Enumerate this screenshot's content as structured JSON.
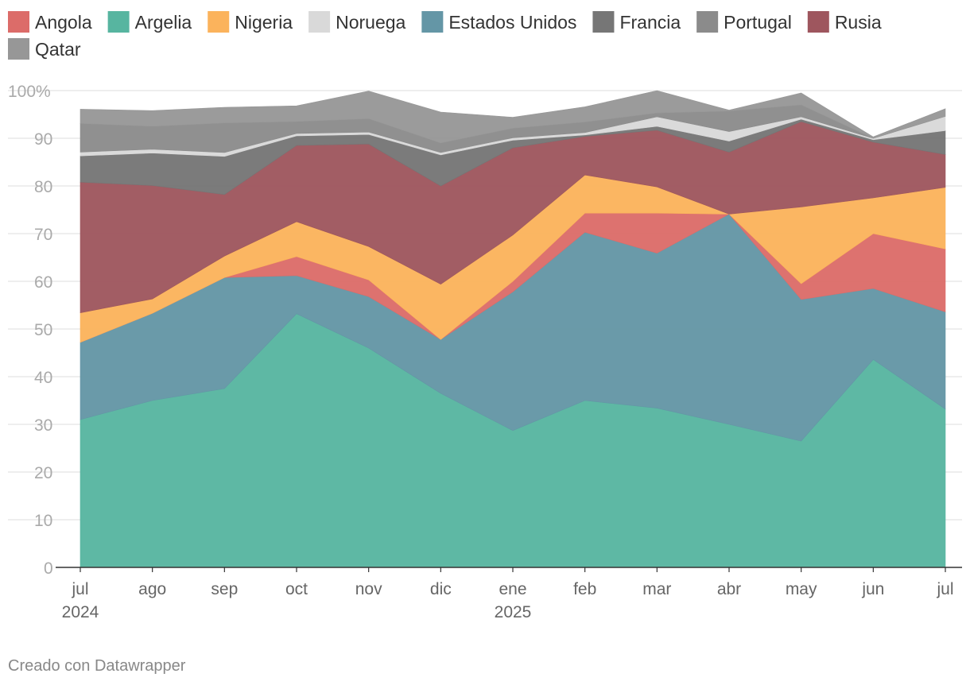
{
  "chart_data": {
    "type": "area",
    "stacked": true,
    "title": "",
    "xlabel": "",
    "ylabel": "",
    "ylim": [
      0,
      100
    ],
    "yticks": [
      {
        "value": 0,
        "label": "0"
      },
      {
        "value": 10,
        "label": "10"
      },
      {
        "value": 20,
        "label": "20"
      },
      {
        "value": 30,
        "label": "30"
      },
      {
        "value": 40,
        "label": "40"
      },
      {
        "value": 50,
        "label": "50"
      },
      {
        "value": 60,
        "label": "60"
      },
      {
        "value": 70,
        "label": "70"
      },
      {
        "value": 80,
        "label": "80"
      },
      {
        "value": 90,
        "label": "90"
      },
      {
        "value": 100,
        "label": "100%"
      }
    ],
    "categories": [
      "jul 2024",
      "ago 2024",
      "sep 2024",
      "oct 2024",
      "nov 2024",
      "dic 2024",
      "ene 2025",
      "feb 2025",
      "mar 2025",
      "abr 2025",
      "may 2025",
      "jun 2025",
      "jul 2025"
    ],
    "xticks": [
      {
        "label": "jul",
        "sublabel": "2024"
      },
      {
        "label": "ago",
        "sublabel": ""
      },
      {
        "label": "sep",
        "sublabel": ""
      },
      {
        "label": "oct",
        "sublabel": ""
      },
      {
        "label": "nov",
        "sublabel": ""
      },
      {
        "label": "dic",
        "sublabel": ""
      },
      {
        "label": "ene",
        "sublabel": "2025"
      },
      {
        "label": "feb",
        "sublabel": ""
      },
      {
        "label": "mar",
        "sublabel": ""
      },
      {
        "label": "abr",
        "sublabel": ""
      },
      {
        "label": "may",
        "sublabel": ""
      },
      {
        "label": "jun",
        "sublabel": ""
      },
      {
        "label": "jul",
        "sublabel": ""
      }
    ],
    "series": [
      {
        "name": "Argelia",
        "color": "#57b5a0",
        "values": [
          31.0,
          35.0,
          37.5,
          53.2,
          46.0,
          36.5,
          28.7,
          35.0,
          33.4,
          30.0,
          26.5,
          43.6,
          33.2
        ]
      },
      {
        "name": "Estados Unidos",
        "color": "#6496a6",
        "values": [
          16.2,
          18.3,
          23.3,
          8.0,
          10.8,
          11.3,
          29.1,
          35.3,
          32.5,
          44.1,
          29.7,
          14.9,
          20.4
        ]
      },
      {
        "name": "Angola",
        "color": "#dc6c69",
        "values": [
          0.0,
          0.0,
          0.0,
          4.0,
          3.5,
          0.0,
          2.2,
          4.0,
          8.4,
          0.0,
          3.3,
          11.5,
          13.2
        ]
      },
      {
        "name": "Nigeria",
        "color": "#fbb35c",
        "values": [
          6.2,
          3.0,
          4.5,
          7.3,
          7.0,
          11.6,
          9.7,
          8.0,
          5.5,
          0.0,
          16.1,
          7.5,
          12.9
        ]
      },
      {
        "name": "Rusia",
        "color": "#9e565e",
        "values": [
          27.4,
          23.8,
          12.9,
          16.0,
          21.5,
          20.6,
          18.3,
          8.1,
          11.9,
          13.0,
          17.9,
          11.7,
          6.9
        ]
      },
      {
        "name": "Francia",
        "color": "#767676",
        "values": [
          5.5,
          6.8,
          8.0,
          2.0,
          2.0,
          6.5,
          1.6,
          0.3,
          0.8,
          2.3,
          0.5,
          0.5,
          5.0
        ]
      },
      {
        "name": "Noruega",
        "color": "#d9d9d9",
        "values": [
          0.8,
          0.8,
          0.8,
          0.5,
          0.5,
          0.5,
          0.5,
          0.5,
          2.0,
          2.0,
          0.5,
          0.3,
          3.0
        ]
      },
      {
        "name": "Portugal",
        "color": "#8b8b8b",
        "values": [
          6.0,
          4.8,
          6.2,
          2.5,
          2.8,
          2.0,
          2.0,
          2.2,
          0.8,
          4.3,
          2.5,
          0.0,
          0.0
        ]
      },
      {
        "name": "Qatar",
        "color": "#979797",
        "values": [
          3.0,
          3.3,
          3.3,
          3.3,
          5.8,
          6.5,
          2.3,
          3.2,
          4.7,
          0.2,
          2.5,
          0.3,
          1.6
        ]
      }
    ],
    "legend": [
      {
        "name": "Angola",
        "color": "#dc6c69"
      },
      {
        "name": "Argelia",
        "color": "#57b5a0"
      },
      {
        "name": "Nigeria",
        "color": "#fbb35c"
      },
      {
        "name": "Noruega",
        "color": "#d9d9d9"
      },
      {
        "name": "Estados Unidos",
        "color": "#6496a6"
      },
      {
        "name": "Francia",
        "color": "#767676"
      },
      {
        "name": "Portugal",
        "color": "#8b8b8b"
      },
      {
        "name": "Rusia",
        "color": "#9e565e"
      },
      {
        "name": "Qatar",
        "color": "#979797"
      }
    ],
    "legend_position": "top",
    "grid": true
  },
  "footer": {
    "credit": "Creado con Datawrapper"
  }
}
